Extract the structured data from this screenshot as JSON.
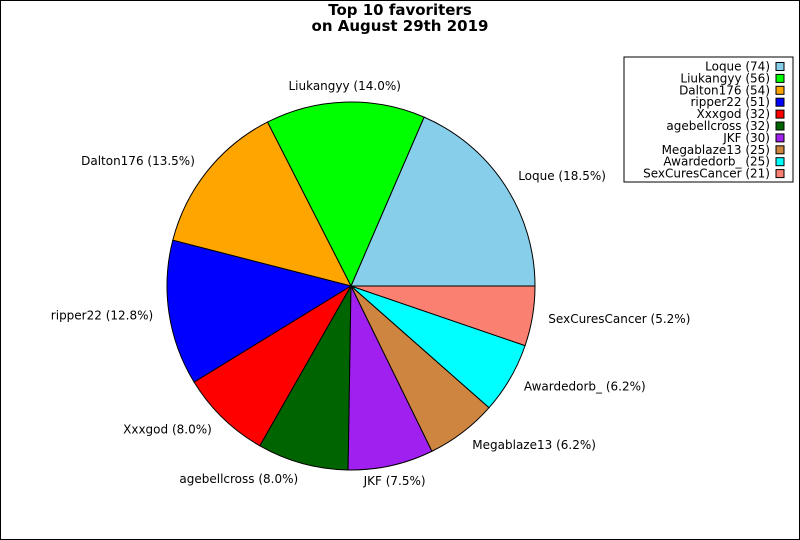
{
  "chart_data": {
    "type": "pie",
    "title_lines": [
      "Top 10 favoriters",
      "on August 29th 2019"
    ],
    "legend_position": "top-right",
    "slices": [
      {
        "name": "Loque",
        "count": 74,
        "percent": "18.5%",
        "color": "#87ceeb"
      },
      {
        "name": "Liukangyy",
        "count": 56,
        "percent": "14.0%",
        "color": "#00ff00"
      },
      {
        "name": "Dalton176",
        "count": 54,
        "percent": "13.5%",
        "color": "#ffa500"
      },
      {
        "name": "ripper22",
        "count": 51,
        "percent": "12.8%",
        "color": "#0000ff"
      },
      {
        "name": "Xxxgod",
        "count": 32,
        "percent": "8.0%",
        "color": "#ff0000"
      },
      {
        "name": "agebellcross",
        "count": 32,
        "percent": "8.0%",
        "color": "#006400"
      },
      {
        "name": "JKF",
        "count": 30,
        "percent": "7.5%",
        "color": "#a020f0"
      },
      {
        "name": "Megablaze13",
        "count": 25,
        "percent": "6.2%",
        "color": "#cd853f"
      },
      {
        "name": "Awardedorb_",
        "count": 25,
        "percent": "6.2%",
        "color": "#00ffff"
      },
      {
        "name": "SexCuresCancer",
        "count": 21,
        "percent": "5.2%",
        "color": "#fa8072"
      }
    ]
  }
}
